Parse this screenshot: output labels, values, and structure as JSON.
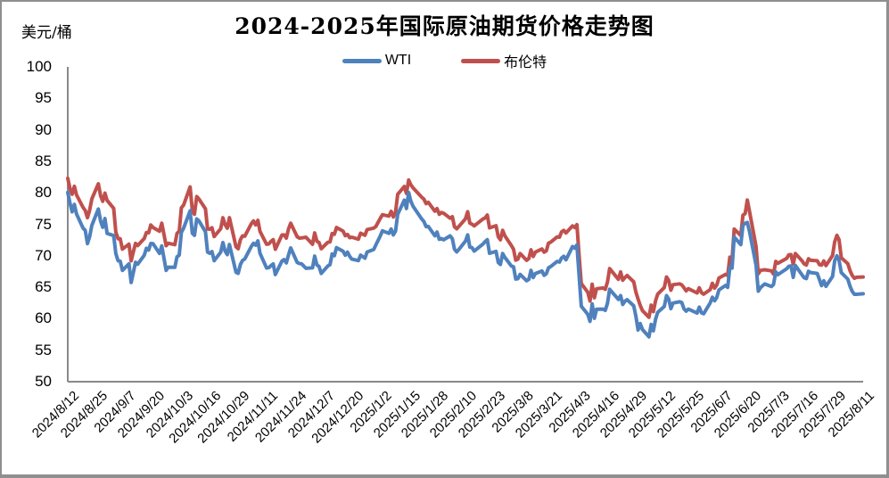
{
  "window": {
    "border_color": "#8f8f8f",
    "background": "#ffffff"
  },
  "header": {
    "title": "2024-2025年国际原油期货价格走势图",
    "unit_label": "美元/桶"
  },
  "legend": {
    "items": [
      {
        "label": "WTI",
        "color": "#4F81BD"
      },
      {
        "label": "布伦特",
        "color": "#C0504D"
      }
    ]
  },
  "axis": {
    "line_color": "#898989",
    "y_tick_labels": [
      "100",
      "95",
      "90",
      "85",
      "80",
      "75",
      "70",
      "65",
      "60",
      "55",
      "50"
    ]
  },
  "chart_data": {
    "type": "line",
    "title": "2024-2025年国际原油期货价格走势图",
    "ylabel": "美元/桶",
    "ylim": [
      50,
      100
    ],
    "ytick_step": 5,
    "grid": false,
    "legend_position": "top-center",
    "x_tick_labels": [
      "2024/8/12",
      "2024/8/25",
      "2024/9/7",
      "2024/9/20",
      "2024/10/3",
      "2024/10/16",
      "2024/10/29",
      "2024/11/11",
      "2024/11/24",
      "2024/12/7",
      "2024/12/20",
      "2025/1/2",
      "2025/1/15",
      "2025/1/28",
      "2025/2/10",
      "2025/2/23",
      "2025/3/8",
      "2025/3/21",
      "2025/4/3",
      "2025/4/16",
      "2025/4/29",
      "2025/5/12",
      "2025/5/25",
      "2025/6/7",
      "2025/6/20",
      "2025/7/3",
      "2025/7/16",
      "2025/7/29",
      "2025/8/11"
    ],
    "dates": [
      "2024/8/12",
      "2024/8/13",
      "2024/8/14",
      "2024/8/15",
      "2024/8/16",
      "2024/8/19",
      "2024/8/20",
      "2024/8/21",
      "2024/8/22",
      "2024/8/23",
      "2024/8/26",
      "2024/8/27",
      "2024/8/28",
      "2024/8/29",
      "2024/8/30",
      "2024/9/2",
      "2024/9/3",
      "2024/9/4",
      "2024/9/5",
      "2024/9/6",
      "2024/9/9",
      "2024/9/10",
      "2024/9/11",
      "2024/9/12",
      "2024/9/13",
      "2024/9/16",
      "2024/9/17",
      "2024/9/18",
      "2024/9/19",
      "2024/9/20",
      "2024/9/23",
      "2024/9/24",
      "2024/9/25",
      "2024/9/26",
      "2024/9/27",
      "2024/9/30",
      "2024/10/1",
      "2024/10/2",
      "2024/10/3",
      "2024/10/4",
      "2024/10/7",
      "2024/10/8",
      "2024/10/9",
      "2024/10/10",
      "2024/10/11",
      "2024/10/14",
      "2024/10/15",
      "2024/10/16",
      "2024/10/17",
      "2024/10/18",
      "2024/10/21",
      "2024/10/22",
      "2024/10/23",
      "2024/10/24",
      "2024/10/25",
      "2024/10/28",
      "2024/10/29",
      "2024/10/30",
      "2024/10/31",
      "2024/11/1",
      "2024/11/4",
      "2024/11/5",
      "2024/11/6",
      "2024/11/7",
      "2024/11/8",
      "2024/11/11",
      "2024/11/12",
      "2024/11/13",
      "2024/11/14",
      "2024/11/15",
      "2024/11/18",
      "2024/11/19",
      "2024/11/20",
      "2024/11/21",
      "2024/11/22",
      "2024/11/25",
      "2024/11/26",
      "2024/11/27",
      "2024/11/29",
      "2024/12/2",
      "2024/12/3",
      "2024/12/4",
      "2024/12/5",
      "2024/12/6",
      "2024/12/9",
      "2024/12/10",
      "2024/12/11",
      "2024/12/12",
      "2024/12/13",
      "2024/12/16",
      "2024/12/17",
      "2024/12/18",
      "2024/12/19",
      "2024/12/20",
      "2024/12/23",
      "2024/12/24",
      "2024/12/26",
      "2024/12/27",
      "2024/12/30",
      "2024/12/31",
      "2025/1/2",
      "2025/1/3",
      "2025/1/6",
      "2025/1/7",
      "2025/1/8",
      "2025/1/9",
      "2025/1/10",
      "2025/1/13",
      "2025/1/14",
      "2025/1/15",
      "2025/1/16",
      "2025/1/17",
      "2025/1/21",
      "2025/1/22",
      "2025/1/23",
      "2025/1/24",
      "2025/1/27",
      "2025/1/28",
      "2025/1/29",
      "2025/1/30",
      "2025/1/31",
      "2025/2/3",
      "2025/2/4",
      "2025/2/5",
      "2025/2/6",
      "2025/2/7",
      "2025/2/10",
      "2025/2/11",
      "2025/2/12",
      "2025/2/13",
      "2025/2/14",
      "2025/2/18",
      "2025/2/19",
      "2025/2/20",
      "2025/2/21",
      "2025/2/24",
      "2025/2/25",
      "2025/2/26",
      "2025/2/27",
      "2025/2/28",
      "2025/3/3",
      "2025/3/4",
      "2025/3/5",
      "2025/3/6",
      "2025/3/7",
      "2025/3/10",
      "2025/3/11",
      "2025/3/12",
      "2025/3/13",
      "2025/3/14",
      "2025/3/17",
      "2025/3/18",
      "2025/3/19",
      "2025/3/20",
      "2025/3/21",
      "2025/3/24",
      "2025/3/25",
      "2025/3/26",
      "2025/3/27",
      "2025/3/28",
      "2025/3/31",
      "2025/4/1",
      "2025/4/2",
      "2025/4/3",
      "2025/4/4",
      "2025/4/7",
      "2025/4/8",
      "2025/4/9",
      "2025/4/10",
      "2025/4/11",
      "2025/4/14",
      "2025/4/15",
      "2025/4/16",
      "2025/4/17",
      "2025/4/21",
      "2025/4/22",
      "2025/4/23",
      "2025/4/24",
      "2025/4/25",
      "2025/4/28",
      "2025/4/29",
      "2025/4/30",
      "2025/5/1",
      "2025/5/2",
      "2025/5/5",
      "2025/5/6",
      "2025/5/7",
      "2025/5/8",
      "2025/5/9",
      "2025/5/12",
      "2025/5/13",
      "2025/5/14",
      "2025/5/15",
      "2025/5/16",
      "2025/5/19",
      "2025/5/20",
      "2025/5/21",
      "2025/5/22",
      "2025/5/23",
      "2025/5/27",
      "2025/5/28",
      "2025/5/29",
      "2025/5/30",
      "2025/6/2",
      "2025/6/3",
      "2025/6/4",
      "2025/6/5",
      "2025/6/6",
      "2025/6/9",
      "2025/6/10",
      "2025/6/11",
      "2025/6/12",
      "2025/6/13",
      "2025/6/16",
      "2025/6/17",
      "2025/6/18",
      "2025/6/19",
      "2025/6/20",
      "2025/6/23",
      "2025/6/24",
      "2025/6/25",
      "2025/6/26",
      "2025/6/27",
      "2025/6/30",
      "2025/7/1",
      "2025/7/2",
      "2025/7/3",
      "2025/7/7",
      "2025/7/8",
      "2025/7/9",
      "2025/7/10",
      "2025/7/11",
      "2025/7/14",
      "2025/7/15",
      "2025/7/16",
      "2025/7/17",
      "2025/7/18",
      "2025/7/21",
      "2025/7/22",
      "2025/7/23",
      "2025/7/24",
      "2025/7/25",
      "2025/7/28",
      "2025/7/29",
      "2025/7/30",
      "2025/7/31",
      "2025/8/1",
      "2025/8/4",
      "2025/8/5",
      "2025/8/6",
      "2025/8/7",
      "2025/8/8",
      "2025/8/11"
    ],
    "series": [
      {
        "name": "WTI",
        "color": "#4F81BD",
        "values": [
          80.06,
          78.35,
          76.98,
          78.16,
          76.65,
          74.37,
          74.04,
          71.93,
          73.01,
          74.83,
          77.42,
          75.53,
          74.52,
          75.91,
          73.55,
          73.2,
          70.34,
          69.2,
          69.15,
          67.67,
          68.71,
          65.75,
          67.31,
          68.97,
          68.65,
          70.09,
          71.19,
          70.91,
          71.95,
          71.92,
          70.37,
          71.56,
          69.69,
          67.67,
          68.18,
          68.17,
          69.83,
          70.1,
          73.71,
          74.38,
          77.14,
          73.57,
          73.24,
          75.85,
          75.56,
          73.83,
          70.58,
          70.39,
          70.67,
          69.22,
          70.56,
          72.09,
          70.77,
          70.19,
          71.78,
          67.38,
          67.21,
          68.61,
          69.26,
          69.49,
          71.47,
          71.99,
          71.69,
          72.36,
          70.38,
          68.04,
          68.12,
          68.43,
          68.7,
          67.02,
          69.16,
          69.39,
          68.87,
          70.1,
          71.24,
          68.94,
          68.77,
          68.72,
          68.0,
          68.1,
          69.94,
          68.54,
          68.3,
          67.2,
          68.37,
          68.59,
          70.29,
          70.02,
          71.29,
          70.71,
          70.08,
          70.58,
          69.91,
          69.46,
          69.24,
          70.1,
          69.62,
          70.6,
          70.99,
          71.72,
          73.13,
          73.96,
          73.56,
          74.25,
          73.32,
          73.92,
          76.57,
          78.82,
          77.5,
          80.04,
          78.68,
          77.88,
          75.83,
          75.44,
          74.62,
          74.66,
          73.17,
          73.77,
          72.62,
          72.73,
          72.53,
          73.16,
          72.7,
          71.03,
          70.61,
          71.0,
          72.32,
          73.32,
          71.37,
          71.29,
          70.74,
          71.85,
          72.25,
          72.57,
          70.4,
          70.7,
          68.93,
          68.62,
          70.35,
          69.76,
          68.37,
          68.26,
          66.31,
          66.36,
          67.04,
          66.03,
          66.25,
          67.68,
          66.55,
          67.18,
          67.58,
          66.9,
          67.16,
          68.07,
          68.28,
          69.11,
          69.0,
          69.65,
          69.92,
          69.36,
          71.48,
          71.2,
          71.71,
          66.95,
          61.99,
          60.7,
          59.58,
          62.35,
          60.07,
          61.5,
          61.53,
          61.33,
          62.47,
          64.68,
          63.08,
          63.67,
          62.27,
          62.79,
          63.02,
          62.05,
          60.42,
          58.21,
          59.24,
          58.29,
          57.13,
          59.09,
          58.07,
          59.91,
          61.02,
          61.95,
          63.67,
          63.15,
          61.62,
          62.49,
          62.69,
          62.56,
          61.57,
          61.2,
          61.53,
          60.89,
          61.84,
          60.94,
          60.79,
          62.52,
          63.41,
          62.85,
          63.37,
          64.58,
          65.29,
          64.98,
          68.15,
          68.04,
          72.98,
          71.77,
          74.84,
          75.14,
          75.3,
          73.84,
          68.51,
          64.37,
          64.92,
          65.24,
          65.52,
          65.11,
          65.45,
          67.45,
          67.0,
          67.93,
          68.33,
          68.38,
          66.57,
          68.45,
          66.98,
          66.52,
          66.38,
          67.54,
          67.34,
          67.2,
          66.21,
          65.25,
          66.03,
          65.16,
          66.71,
          69.21,
          70.0,
          69.26,
          67.33,
          66.29,
          65.16,
          64.35,
          63.88,
          63.88,
          63.96
        ]
      },
      {
        "name": "布伦特",
        "color": "#C0504D",
        "values": [
          82.3,
          80.69,
          79.76,
          81.04,
          79.68,
          77.66,
          77.2,
          76.05,
          77.22,
          79.02,
          81.43,
          79.55,
          78.65,
          79.94,
          78.8,
          77.52,
          73.75,
          72.7,
          72.69,
          71.06,
          71.84,
          69.19,
          70.61,
          71.97,
          71.61,
          72.75,
          73.7,
          73.65,
          74.88,
          74.49,
          73.9,
          75.17,
          73.46,
          71.6,
          71.98,
          71.77,
          73.56,
          73.9,
          77.62,
          78.05,
          80.93,
          77.18,
          76.58,
          79.4,
          79.04,
          77.46,
          74.25,
          74.22,
          74.45,
          73.06,
          74.29,
          76.04,
          74.96,
          74.38,
          76.05,
          71.42,
          71.12,
          72.55,
          73.16,
          73.1,
          75.08,
          75.53,
          74.92,
          75.63,
          73.87,
          71.83,
          71.89,
          72.28,
          72.56,
          71.04,
          73.3,
          73.31,
          72.81,
          74.23,
          75.17,
          73.01,
          72.81,
          72.83,
          72.94,
          71.83,
          73.62,
          72.31,
          72.09,
          71.12,
          72.14,
          72.19,
          73.52,
          73.41,
          74.49,
          73.91,
          73.19,
          73.39,
          72.88,
          72.94,
          72.63,
          73.58,
          73.26,
          74.17,
          74.39,
          74.64,
          75.93,
          76.51,
          76.3,
          77.05,
          76.16,
          76.92,
          79.76,
          81.01,
          79.92,
          82.03,
          81.29,
          80.79,
          79.29,
          79.0,
          78.29,
          78.5,
          77.08,
          77.49,
          76.58,
          76.87,
          76.76,
          75.96,
          76.2,
          74.61,
          74.29,
          74.66,
          75.87,
          77.0,
          75.18,
          75.02,
          74.74,
          75.84,
          76.04,
          76.48,
          74.43,
          74.78,
          73.02,
          72.53,
          74.04,
          73.18,
          71.62,
          71.04,
          69.3,
          69.46,
          70.36,
          69.28,
          69.56,
          70.95,
          69.88,
          70.58,
          71.07,
          70.56,
          70.78,
          72.0,
          72.16,
          73.0,
          72.94,
          73.79,
          74.03,
          73.63,
          74.74,
          74.49,
          74.95,
          70.14,
          65.58,
          64.21,
          62.82,
          65.48,
          63.33,
          64.76,
          64.88,
          64.67,
          65.85,
          67.96,
          66.26,
          67.44,
          66.12,
          66.55,
          66.87,
          65.86,
          64.25,
          63.12,
          62.13,
          61.29,
          60.23,
          62.15,
          61.12,
          62.84,
          63.91,
          64.96,
          66.63,
          66.09,
          64.53,
          65.41,
          65.54,
          65.38,
          64.91,
          64.44,
          64.78,
          64.09,
          64.92,
          64.15,
          63.9,
          64.63,
          65.63,
          64.86,
          65.34,
          66.47,
          67.04,
          66.87,
          69.77,
          69.36,
          74.23,
          73.23,
          76.45,
          76.7,
          78.85,
          77.01,
          71.48,
          67.14,
          67.68,
          67.73,
          67.77,
          67.61,
          67.11,
          69.11,
          68.8,
          69.58,
          70.15,
          70.19,
          68.64,
          70.36,
          69.21,
          68.71,
          68.52,
          69.52,
          69.28,
          69.21,
          68.59,
          68.51,
          69.18,
          68.44,
          70.04,
          72.23,
          73.24,
          72.53,
          69.67,
          68.76,
          67.64,
          66.89,
          66.43,
          66.59,
          66.63
        ]
      }
    ]
  }
}
